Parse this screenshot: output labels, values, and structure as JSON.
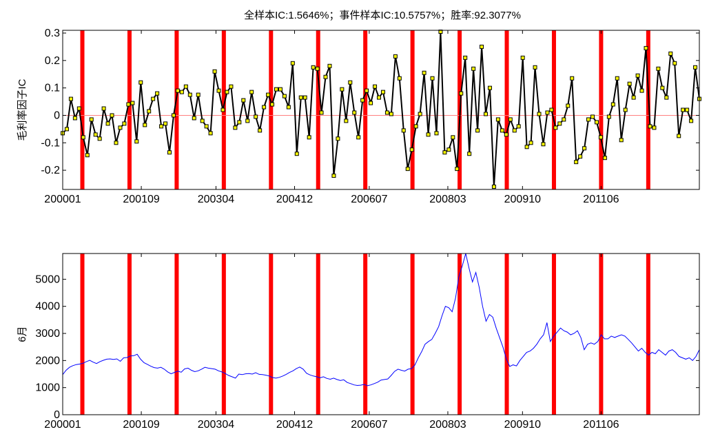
{
  "chart_data": [
    {
      "type": "line",
      "title": "全样本IC:1.5646%；事件样本IC:10.5757%；胜率:92.3077%",
      "ylabel": "毛利率因子IC",
      "xlabel": "",
      "ylim": [
        -0.27,
        0.31
      ],
      "yticks": [
        -0.2,
        -0.1,
        0,
        0.1,
        0.2,
        0.3
      ],
      "ytick_labels": [
        "-0.2",
        "-0.1",
        "0",
        "0.1",
        "0.2",
        "0.3"
      ],
      "x_start": "200001",
      "x_end": "201307",
      "xtick_labels": [
        "200001",
        "200109",
        "200304",
        "200412",
        "200607",
        "200803",
        "200910",
        "201106"
      ],
      "grid": false,
      "zero_line": true,
      "event_markers": [
        "200006",
        "200106",
        "200206",
        "200306",
        "200406",
        "200506",
        "200606",
        "200706",
        "200806",
        "200906",
        "201006",
        "201106",
        "201206"
      ],
      "colors": {
        "line": "#000000",
        "marker_fill": "#ffff00",
        "event": "#ff0000",
        "zero_line": "#ff8080"
      },
      "series": [
        {
          "values": [
            -0.065,
            -0.05,
            0.06,
            -0.01,
            0.025,
            -0.08,
            -0.145,
            -0.015,
            -0.07,
            -0.085,
            0.025,
            -0.03,
            0.0,
            -0.1,
            -0.045,
            -0.03,
            0.04,
            0.045,
            -0.095,
            0.12,
            -0.035,
            0.015,
            0.06,
            0.08,
            -0.04,
            -0.03,
            -0.135,
            0.0,
            0.09,
            0.085,
            0.105,
            0.075,
            -0.01,
            0.075,
            -0.02,
            -0.04,
            -0.065,
            0.16,
            0.09,
            0.02,
            0.085,
            0.105,
            -0.045,
            -0.025,
            0.055,
            -0.02,
            0.085,
            -0.005,
            -0.055,
            0.03,
            0.075,
            0.04,
            0.095,
            0.095,
            0.07,
            0.03,
            0.19,
            -0.14,
            0.065,
            0.065,
            -0.08,
            0.175,
            0.17,
            0.01,
            0.14,
            0.18,
            -0.22,
            -0.085,
            0.095,
            -0.02,
            0.12,
            0.01,
            -0.08,
            0.055,
            0.09,
            0.045,
            0.105,
            0.065,
            0.085,
            0.01,
            0.005,
            0.215,
            0.135,
            -0.055,
            -0.195,
            -0.125,
            -0.04,
            0.005,
            0.155,
            -0.07,
            0.135,
            -0.065,
            0.305,
            -0.135,
            -0.125,
            -0.08,
            -0.195,
            0.08,
            0.21,
            -0.14,
            0.17,
            -0.055,
            0.25,
            0.005,
            0.1,
            -0.26,
            -0.015,
            -0.055,
            -0.07,
            -0.015,
            -0.055,
            -0.04,
            0.21,
            -0.115,
            -0.1,
            0.175,
            0.005,
            -0.105,
            0.01,
            0.02,
            -0.045,
            -0.03,
            -0.015,
            0.035,
            0.135,
            -0.17,
            -0.15,
            -0.12,
            -0.015,
            -0.005,
            -0.025,
            -0.08,
            -0.155,
            -0.005,
            0.04,
            0.135,
            -0.09,
            0.02,
            0.115,
            0.065,
            0.145,
            0.09,
            0.245,
            -0.04,
            -0.045,
            0.17,
            0.1,
            0.065,
            0.225,
            0.19,
            -0.075,
            0.02,
            0.02,
            -0.02,
            0.175,
            0.06
          ]
        }
      ]
    },
    {
      "type": "line",
      "title": "",
      "ylabel": "6月",
      "xlabel": "",
      "ylim": [
        0,
        5950
      ],
      "yticks": [
        0,
        1000,
        2000,
        3000,
        4000,
        5000
      ],
      "ytick_labels": [
        "0",
        "1000",
        "2000",
        "3000",
        "4000",
        "5000"
      ],
      "x_start": "200001",
      "x_end": "201307",
      "xtick_labels": [
        "200001",
        "200109",
        "200304",
        "200412",
        "200607",
        "200803",
        "200910",
        "201106"
      ],
      "grid": false,
      "event_markers": [
        "200006",
        "200106",
        "200206",
        "200306",
        "200406",
        "200506",
        "200606",
        "200706",
        "200806",
        "200906",
        "201006",
        "201106",
        "201206"
      ],
      "colors": {
        "line": "#0000ff",
        "event": "#ff0000"
      },
      "series": [
        {
          "values": [
            1480,
            1640,
            1750,
            1810,
            1850,
            1870,
            1900,
            1960,
            2010,
            1940,
            1890,
            1960,
            2010,
            2050,
            2060,
            2040,
            2060,
            1970,
            2100,
            2110,
            2170,
            2180,
            2230,
            2050,
            1920,
            1860,
            1790,
            1740,
            1720,
            1750,
            1680,
            1580,
            1510,
            1560,
            1610,
            1570,
            1690,
            1720,
            1640,
            1590,
            1620,
            1680,
            1750,
            1720,
            1700,
            1680,
            1620,
            1580,
            1520,
            1450,
            1400,
            1350,
            1500,
            1480,
            1510,
            1520,
            1500,
            1550,
            1490,
            1480,
            1460,
            1430,
            1370,
            1350,
            1380,
            1430,
            1490,
            1560,
            1620,
            1700,
            1760,
            1680,
            1530,
            1470,
            1430,
            1400,
            1360,
            1400,
            1340,
            1310,
            1350,
            1300,
            1260,
            1290,
            1190,
            1150,
            1100,
            1080,
            1090,
            1120,
            1070,
            1100,
            1150,
            1200,
            1280,
            1300,
            1320,
            1450,
            1600,
            1680,
            1640,
            1610,
            1680,
            1700,
            1830,
            2100,
            2330,
            2600,
            2700,
            2780,
            3000,
            3250,
            3650,
            4000,
            3950,
            3800,
            4300,
            5100,
            5500,
            5950,
            5400,
            4900,
            5250,
            4700,
            4000,
            3450,
            3700,
            3600,
            3200,
            2850,
            2500,
            2050,
            1780,
            1840,
            1800,
            2000,
            2150,
            2300,
            2350,
            2450,
            2600,
            2800,
            2950,
            3400,
            2700,
            2900,
            3050,
            3200,
            3100,
            3050,
            2950,
            3000,
            3100,
            2850,
            2400,
            2600,
            2650,
            2600,
            2700,
            2950,
            2800,
            2800,
            2900,
            2850,
            2900,
            2950,
            2900,
            2780,
            2650,
            2500,
            2350,
            2450,
            2300,
            2200,
            2300,
            2250,
            2400,
            2300,
            2200,
            2350,
            2400,
            2300,
            2150,
            2100,
            2050,
            2100,
            2000,
            2150,
            2400
          ]
        }
      ]
    }
  ]
}
